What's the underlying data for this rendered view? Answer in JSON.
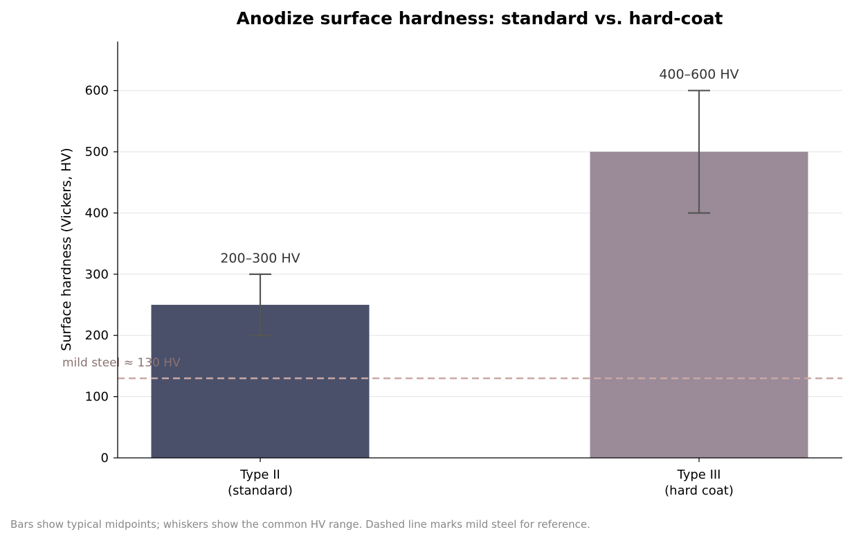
{
  "chart_data": {
    "type": "bar",
    "title": "Anodize surface hardness: standard vs. hard-coat",
    "ylabel": "Surface hardness (Vickers, HV)",
    "xlabel": "",
    "ylim": [
      0,
      680
    ],
    "yticks": [
      0,
      100,
      200,
      300,
      400,
      500,
      600
    ],
    "grid": "horizontal",
    "categories": [
      [
        "Type II",
        "(standard)"
      ],
      [
        "Type III",
        "(hard coat)"
      ]
    ],
    "values": [
      250,
      500
    ],
    "ranges": [
      [
        200,
        300
      ],
      [
        400,
        600
      ]
    ],
    "range_labels": [
      "200–300 HV",
      "400–600 HV"
    ],
    "bar_colors": [
      "#4a506a",
      "#9b8b99"
    ],
    "reference_line": {
      "value": 130,
      "label": "mild steel ≈ 130 HV",
      "color": "#c9a8a4",
      "label_color": "#8a7370",
      "style": "dashed"
    },
    "caption": "Bars show typical midpoints; whiskers show the common HV range. Dashed line marks mild steel for reference."
  }
}
